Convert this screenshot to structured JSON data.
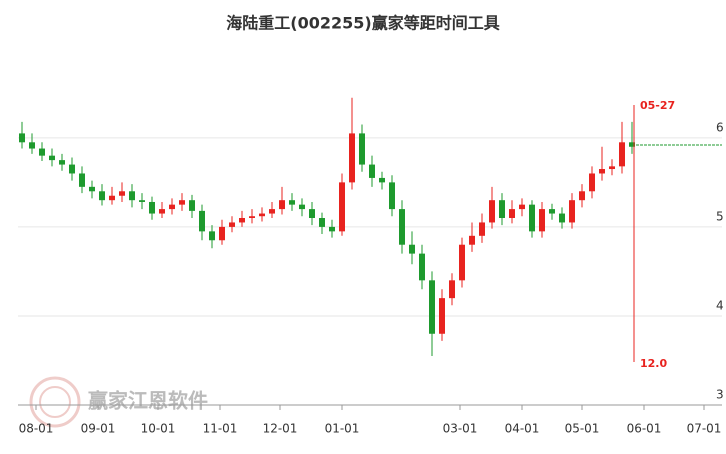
{
  "chart_data": {
    "type": "candlestick",
    "title": "海陆重工(002255)赢家等距时间工具",
    "watermark": "赢家江恩软件",
    "x": [
      -7,
      -2,
      3,
      8,
      13,
      18,
      23,
      28,
      33,
      38,
      43,
      48,
      53,
      58,
      63,
      68,
      73,
      78,
      83,
      88,
      93,
      98,
      103,
      108,
      113,
      118,
      123,
      128,
      133,
      138,
      143,
      148,
      153,
      158,
      163,
      168,
      173,
      178,
      183,
      188,
      193,
      198,
      203,
      208,
      213,
      218,
      223,
      228,
      233,
      238,
      243,
      248,
      253,
      258,
      263,
      268,
      273,
      278,
      283,
      288,
      293,
      298
    ],
    "open": [
      6.05,
      5.95,
      5.88,
      5.8,
      5.75,
      5.7,
      5.6,
      5.45,
      5.4,
      5.3,
      5.35,
      5.4,
      5.3,
      5.28,
      5.15,
      5.2,
      5.25,
      5.3,
      5.18,
      4.95,
      4.85,
      5.0,
      5.05,
      5.1,
      5.12,
      5.15,
      5.2,
      5.3,
      5.25,
      5.2,
      5.1,
      5.0,
      4.95,
      5.5,
      6.05,
      5.7,
      5.55,
      5.5,
      5.2,
      4.8,
      4.7,
      4.4,
      3.8,
      4.2,
      4.4,
      4.8,
      4.9,
      5.05,
      5.3,
      5.1,
      5.2,
      5.25,
      4.95,
      5.2,
      5.15,
      5.05,
      5.3,
      5.4,
      5.6,
      5.65,
      5.68,
      5.95
    ],
    "high": [
      6.18,
      6.05,
      5.95,
      5.88,
      5.82,
      5.78,
      5.68,
      5.52,
      5.48,
      5.45,
      5.5,
      5.48,
      5.38,
      5.34,
      5.28,
      5.32,
      5.38,
      5.36,
      5.25,
      5.02,
      5.08,
      5.12,
      5.18,
      5.2,
      5.22,
      5.28,
      5.45,
      5.38,
      5.32,
      5.28,
      5.16,
      5.08,
      5.6,
      6.45,
      6.15,
      5.8,
      5.62,
      5.58,
      5.3,
      4.95,
      4.8,
      4.5,
      4.3,
      4.48,
      4.88,
      5.05,
      5.15,
      5.45,
      5.38,
      5.3,
      5.32,
      5.3,
      5.28,
      5.26,
      5.22,
      5.38,
      5.48,
      5.68,
      5.9,
      5.76,
      6.18,
      6.18
    ],
    "low": [
      5.88,
      5.82,
      5.74,
      5.68,
      5.63,
      5.52,
      5.38,
      5.32,
      5.24,
      5.25,
      5.28,
      5.22,
      5.2,
      5.08,
      5.1,
      5.14,
      5.18,
      5.1,
      4.85,
      4.76,
      4.8,
      4.94,
      5.0,
      5.04,
      5.06,
      5.1,
      5.14,
      5.18,
      5.12,
      5.02,
      4.92,
      4.88,
      4.9,
      5.42,
      5.62,
      5.45,
      5.42,
      5.12,
      4.7,
      4.58,
      4.3,
      3.55,
      3.72,
      4.12,
      4.32,
      4.72,
      4.82,
      4.98,
      5.02,
      5.04,
      5.12,
      4.88,
      4.88,
      5.08,
      4.98,
      4.98,
      5.22,
      5.32,
      5.52,
      5.58,
      5.6,
      5.82
    ],
    "close": [
      5.95,
      5.88,
      5.8,
      5.75,
      5.7,
      5.6,
      5.45,
      5.4,
      5.3,
      5.35,
      5.4,
      5.3,
      5.28,
      5.15,
      5.2,
      5.25,
      5.3,
      5.18,
      4.95,
      4.85,
      5.0,
      5.05,
      5.1,
      5.12,
      5.15,
      5.2,
      5.3,
      5.25,
      5.2,
      5.1,
      5.0,
      4.95,
      5.5,
      6.05,
      5.7,
      5.55,
      5.5,
      5.2,
      4.8,
      4.7,
      4.4,
      3.8,
      4.2,
      4.4,
      4.8,
      4.9,
      5.05,
      5.3,
      5.1,
      5.2,
      5.25,
      4.95,
      5.2,
      5.15,
      5.05,
      5.3,
      5.4,
      5.6,
      5.65,
      5.68,
      5.95,
      5.9
    ],
    "up_color": "#e8231f",
    "down_color": "#1e9a2e",
    "xlim": [
      -9,
      343
    ],
    "xticks": [
      {
        "value": 0,
        "label": "08-01"
      },
      {
        "value": 31,
        "label": "09-01"
      },
      {
        "value": 61,
        "label": "10-01"
      },
      {
        "value": 92,
        "label": "11-01"
      },
      {
        "value": 122,
        "label": "12-01"
      },
      {
        "value": 153,
        "label": "01-01"
      },
      {
        "value": 212,
        "label": "03-01"
      },
      {
        "value": 243,
        "label": "04-01"
      },
      {
        "value": 273,
        "label": "05-01"
      },
      {
        "value": 304,
        "label": "06-01"
      },
      {
        "value": 334,
        "label": "07-01"
      }
    ],
    "ylim": [
      3,
      7.2
    ],
    "yticks": [
      3,
      4,
      5,
      6
    ],
    "grid": true,
    "ref_line": {
      "value": 5.92,
      "color": "#1e9a2e"
    },
    "annotations": [
      {
        "label": "05-27",
        "x": 299
      },
      {
        "label": "12.0"
      }
    ],
    "annotation_color": "#e8231f"
  }
}
